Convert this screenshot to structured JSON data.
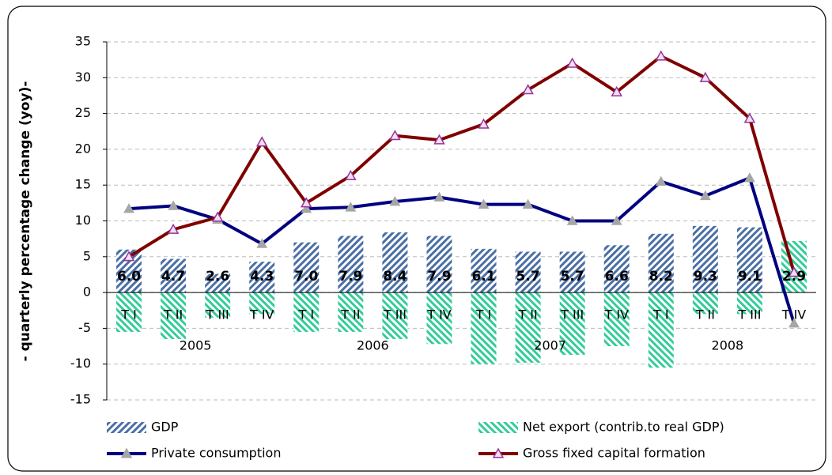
{
  "chart_data": {
    "type": "bar",
    "y_label": "- quarterly percentage change (yoy)-",
    "categories": [
      "T I",
      "T II",
      "T III",
      "T IV",
      "T I",
      "T II",
      "T III",
      "T IV",
      "T I",
      "T II",
      "T III",
      "T IV",
      "T I",
      "T II",
      "T III",
      "T IV"
    ],
    "category_groups": [
      "2005",
      "2006",
      "2007",
      "2008"
    ],
    "series": [
      {
        "name": "GDP",
        "type": "bar",
        "color": "#4a6fa5",
        "values": [
          6.0,
          4.7,
          2.6,
          4.3,
          7.0,
          7.9,
          8.4,
          7.9,
          6.1,
          5.7,
          5.7,
          6.6,
          8.2,
          9.3,
          9.1,
          2.9
        ],
        "value_labels": [
          "6.0",
          "4.7",
          "2.6",
          "4.3",
          "7.0",
          "7.9",
          "8.4",
          "7.9",
          "6.1",
          "5.7",
          "5.7",
          "6.6",
          "8.2",
          "9.3",
          "9.1",
          "2.9"
        ]
      },
      {
        "name": "Net export (contrib.to real GDP)",
        "type": "bar",
        "color": "#33cc99",
        "values": [
          -5.5,
          -6.5,
          -3.5,
          -3.0,
          -5.5,
          -5.5,
          -6.5,
          -7.2,
          -10.0,
          -9.8,
          -8.7,
          -7.5,
          -10.5,
          -3.0,
          -3.0,
          7.2
        ]
      },
      {
        "name": "Private consumption",
        "type": "line",
        "color": "#000080",
        "marker_color": "#a6a6a6",
        "values": [
          11.7,
          12.1,
          10.2,
          6.8,
          11.7,
          11.9,
          12.7,
          13.3,
          12.3,
          12.3,
          10.0,
          10.0,
          15.5,
          13.5,
          16.0,
          -4.3
        ]
      },
      {
        "name": "Gross fixed capital formation",
        "type": "line",
        "color": "#800000",
        "marker_color": "#993399",
        "values": [
          5.0,
          8.8,
          10.5,
          21.0,
          12.5,
          16.3,
          21.9,
          21.3,
          23.5,
          28.3,
          32.0,
          28.0,
          33.0,
          30.0,
          24.3,
          2.8
        ]
      }
    ],
    "ylim": [
      -15,
      35
    ],
    "yticks": [
      -15,
      -10,
      -5,
      0,
      5,
      10,
      15,
      20,
      25,
      30,
      35
    ],
    "grid": true
  }
}
